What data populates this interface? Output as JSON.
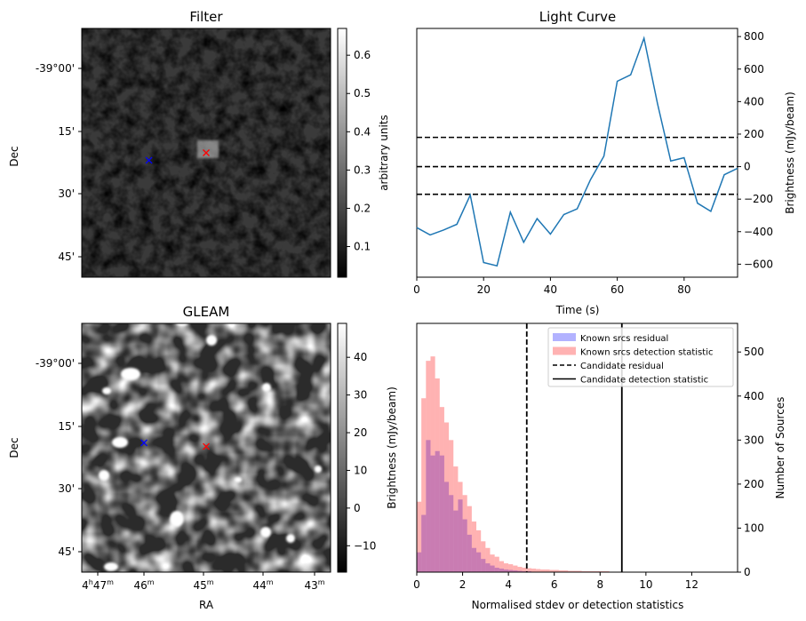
{
  "chart_data": [
    {
      "type": "heatmap",
      "title": "Filter",
      "ylabel": "Dec",
      "ytick_labels": [
        "-39°00'",
        "15'",
        "30'",
        "45'"
      ],
      "colorbar": {
        "label": "arbitrary units",
        "range": [
          0.02,
          0.67
        ],
        "ticks": [
          0.1,
          0.2,
          0.3,
          0.4,
          0.5,
          0.6
        ],
        "tick_labels": [
          "0.1",
          "0.2",
          "0.3",
          "0.4",
          "0.5",
          "0.6"
        ]
      },
      "markers": [
        {
          "color": "#0000ff",
          "symbol": "x",
          "ra_frac": 0.27,
          "dec_frac": 0.53
        },
        {
          "color": "#ff0000",
          "symbol": "x",
          "ra_frac": 0.5,
          "dec_frac": 0.5
        }
      ]
    },
    {
      "type": "line",
      "title": "Light Curve",
      "xlabel": "Time (s)",
      "ylabel": "Brightness (mJy/beam)",
      "xlim": [
        0,
        96
      ],
      "ylim": [
        -680,
        850
      ],
      "xticks": [
        0,
        20,
        40,
        60,
        80
      ],
      "yticks": [
        -600,
        -400,
        -200,
        0,
        200,
        400,
        600,
        800
      ],
      "series": [
        {
          "color": "#1f77b4",
          "x": [
            0,
            4,
            8,
            12,
            16,
            20,
            24,
            28,
            32,
            36,
            40,
            44,
            48,
            52,
            56,
            60,
            64,
            68,
            72,
            76,
            80,
            84,
            88,
            92,
            96
          ],
          "y": [
            -375,
            -420,
            -390,
            -355,
            -175,
            -590,
            -610,
            -280,
            -465,
            -320,
            -415,
            -295,
            -260,
            -80,
            65,
            525,
            565,
            790,
            390,
            35,
            55,
            -225,
            -275,
            -50,
            -10
          ]
        }
      ],
      "hlines": [
        {
          "y": 180,
          "style": "dashed",
          "color": "#000000"
        },
        {
          "y": 0,
          "style": "dashed",
          "color": "#000000"
        },
        {
          "y": -170,
          "style": "dashed",
          "color": "#000000"
        }
      ]
    },
    {
      "type": "heatmap",
      "title": "GLEAM",
      "xlabel": "RA",
      "ylabel": "Dec",
      "ytick_labels": [
        "-39°00'",
        "15'",
        "30'",
        "45'"
      ],
      "xtick_labels": [
        {
          "h": "4",
          "m": "47"
        },
        {
          "h": "",
          "m": "46"
        },
        {
          "h": "",
          "m": "45"
        },
        {
          "h": "",
          "m": "44"
        },
        {
          "h": "",
          "m": "43"
        }
      ],
      "colorbar": {
        "label": "Brightness (mJy/beam)",
        "range": [
          -17,
          49
        ],
        "ticks": [
          -10,
          0,
          10,
          20,
          30,
          40
        ],
        "tick_labels": [
          "−10",
          "0",
          "10",
          "20",
          "30",
          "40"
        ]
      },
      "markers": [
        {
          "color": "#0000ff",
          "symbol": "x",
          "ra_frac": 0.25,
          "dec_frac": 0.48
        },
        {
          "color": "#ff0000",
          "symbol": "x",
          "ra_frac": 0.5,
          "dec_frac": 0.495
        }
      ]
    },
    {
      "type": "histogram",
      "xlabel": "Normalised stdev or detection statistics",
      "ylabel": "Number of Sources",
      "xlim": [
        0,
        14
      ],
      "ylim": [
        0,
        565
      ],
      "xticks": [
        0,
        2,
        4,
        6,
        8,
        10,
        12
      ],
      "yticks": [
        0,
        100,
        200,
        300,
        400,
        500
      ],
      "bin_width": 0.2,
      "series": [
        {
          "name": "Known srcs residual",
          "color": "#0000ff",
          "alpha": 0.3,
          "bin_start": 0,
          "values": [
            45,
            130,
            300,
            265,
            275,
            265,
            205,
            175,
            140,
            165,
            120,
            85,
            55,
            45,
            30,
            20,
            15,
            10,
            8,
            6,
            5,
            4,
            3,
            2,
            2,
            1,
            1,
            1,
            1,
            1,
            1,
            1,
            1,
            1,
            0,
            0,
            0,
            0,
            0,
            0
          ]
        },
        {
          "name": "Known srcs detection statistic",
          "color": "#ff0000",
          "alpha": 0.3,
          "bin_start": 0,
          "values": [
            160,
            395,
            480,
            490,
            440,
            375,
            340,
            300,
            240,
            205,
            175,
            150,
            115,
            95,
            70,
            55,
            40,
            35,
            25,
            20,
            18,
            15,
            12,
            10,
            9,
            8,
            7,
            6,
            6,
            5,
            5,
            4,
            4,
            3,
            3,
            3,
            2,
            2,
            2,
            2,
            2,
            2,
            1,
            1,
            1,
            1,
            1,
            1,
            1,
            1,
            1,
            1,
            1,
            1,
            1,
            1,
            1,
            1,
            1,
            1,
            1,
            1,
            1,
            1,
            1,
            1
          ]
        }
      ],
      "vlines": [
        {
          "x": 4.8,
          "style": "dashed",
          "label": "Candidate residual"
        },
        {
          "x": 8.95,
          "style": "solid",
          "label": "Candidate detection statistic"
        }
      ],
      "legend": "top-right",
      "twin_left_ylabel": "Brightness (mJy/beam)"
    }
  ]
}
